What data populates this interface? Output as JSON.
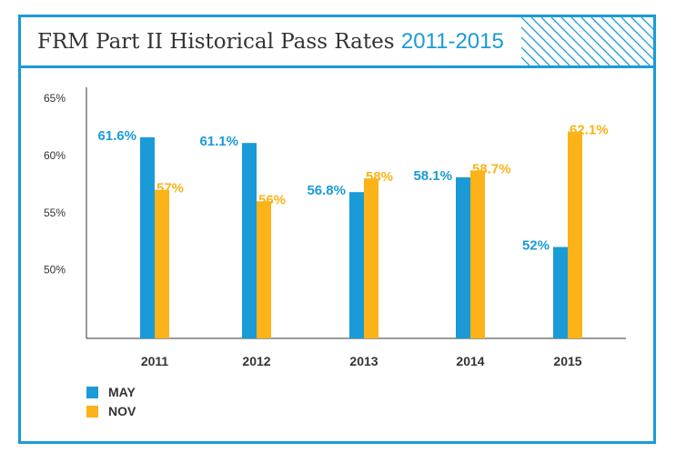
{
  "header": {
    "title": "FRM Part II Historical Pass Rates",
    "title_years": "2011-2015"
  },
  "colors": {
    "border": "#1a9bd7",
    "may": "#1a9bd7",
    "nov": "#fbb319",
    "text": "#333333"
  },
  "chart_data": {
    "type": "bar",
    "categories": [
      "2011",
      "2012",
      "2013",
      "2014",
      "2015"
    ],
    "series": [
      {
        "name": "MAY",
        "values": [
          61.6,
          61.1,
          56.8,
          58.1,
          52
        ],
        "labels": [
          "61.6%",
          "61.1%",
          "56.8%",
          "58.1%",
          "52%"
        ]
      },
      {
        "name": "NOV",
        "values": [
          57,
          56,
          58,
          58.7,
          62.1
        ],
        "labels": [
          "57%",
          "56%",
          "58%",
          "58.7%",
          "62.1%"
        ]
      }
    ],
    "yticks": [
      {
        "value": 50,
        "label": "50%"
      },
      {
        "value": 55,
        "label": "55%"
      },
      {
        "value": 60,
        "label": "60%"
      },
      {
        "value": 65,
        "label": "65%"
      }
    ],
    "ylim": [
      44,
      66
    ],
    "grid": false,
    "legend_position": "bottom-left"
  }
}
